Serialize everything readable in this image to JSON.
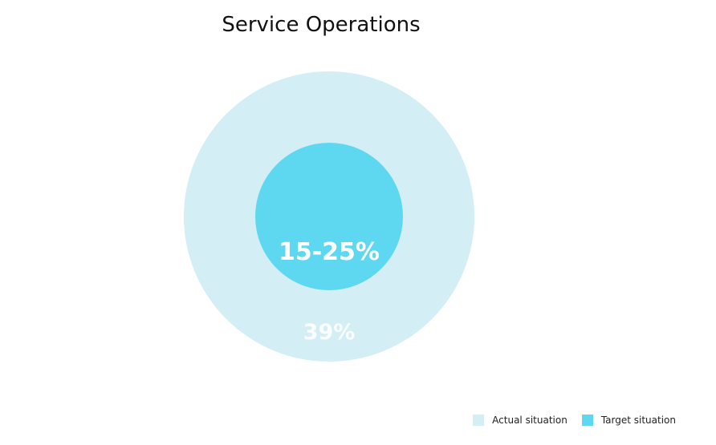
{
  "chart_data": {
    "type": "bubble",
    "title": "Service Operations",
    "series": [
      {
        "name": "Actual situation",
        "label": "39%",
        "value": 39,
        "color": "#d3eef5"
      },
      {
        "name": "Target situation",
        "label": "15-25%",
        "value": 20,
        "range": [
          15,
          25
        ],
        "color": "#5dd8f0"
      }
    ],
    "legend": {
      "placement": "bottom-right"
    }
  }
}
